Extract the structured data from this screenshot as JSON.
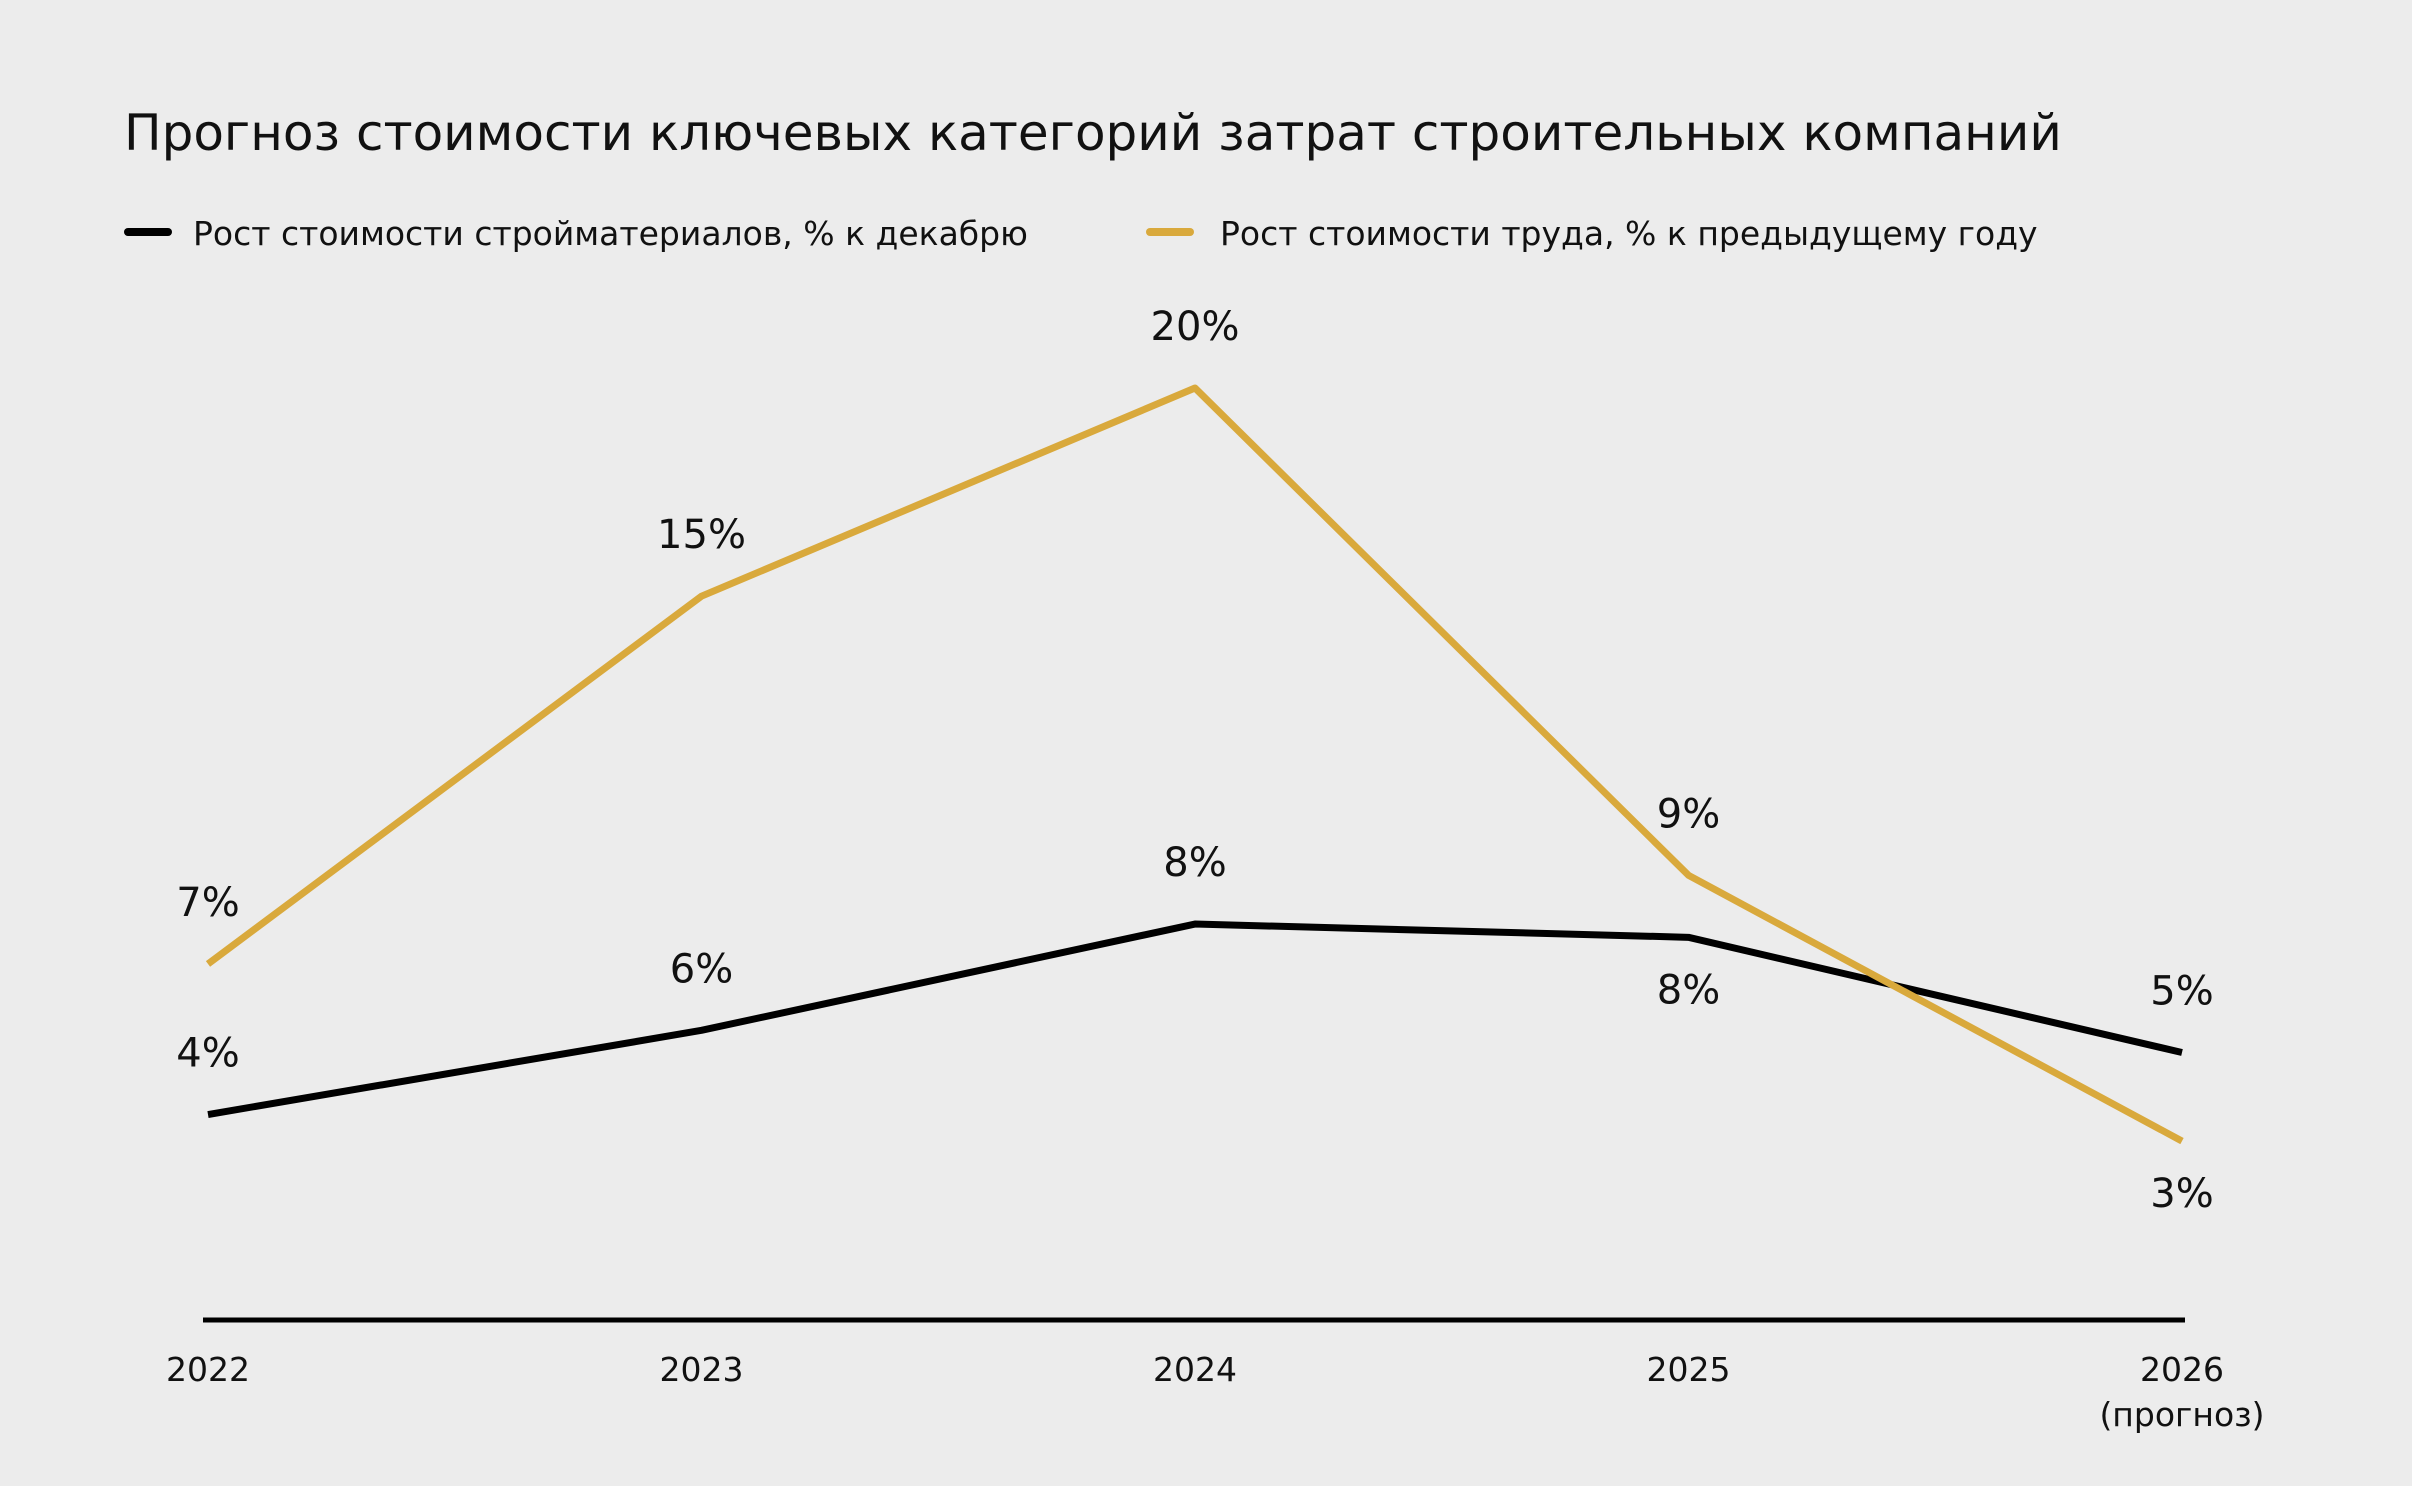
{
  "chart_data": {
    "type": "line",
    "title": "Прогноз стоимости ключевых категорий затрат строительных компаний",
    "xlabel": "",
    "ylabel": "",
    "categories": [
      "2022",
      "2023",
      "2024",
      "2025",
      "2026"
    ],
    "category_sublabels": [
      "",
      "",
      "",
      "",
      "(прогноз)"
    ],
    "ylim": [
      0,
      23
    ],
    "grid": false,
    "legend_position": "top-left",
    "series": [
      {
        "name": "Рост стоимости стройматериалов, % к декабрю",
        "color": "#000000",
        "values": [
          3.6,
          5.5,
          7.9,
          7.6,
          5.0
        ],
        "labels": [
          "4%",
          "6%",
          "8%",
          "8%",
          "5%"
        ],
        "label_positions": [
          "above",
          "above",
          "above",
          "below",
          "above"
        ]
      },
      {
        "name": "Рост стоимости труда, % к предыдущему году",
        "color": "#d9a93c",
        "values": [
          7.0,
          15.3,
          20.0,
          9.0,
          3.0
        ],
        "labels": [
          "7%",
          "15%",
          "20%",
          "9%",
          "3%"
        ],
        "label_positions": [
          "above",
          "above",
          "above",
          "above",
          "below"
        ]
      }
    ],
    "background": "#ececec"
  }
}
